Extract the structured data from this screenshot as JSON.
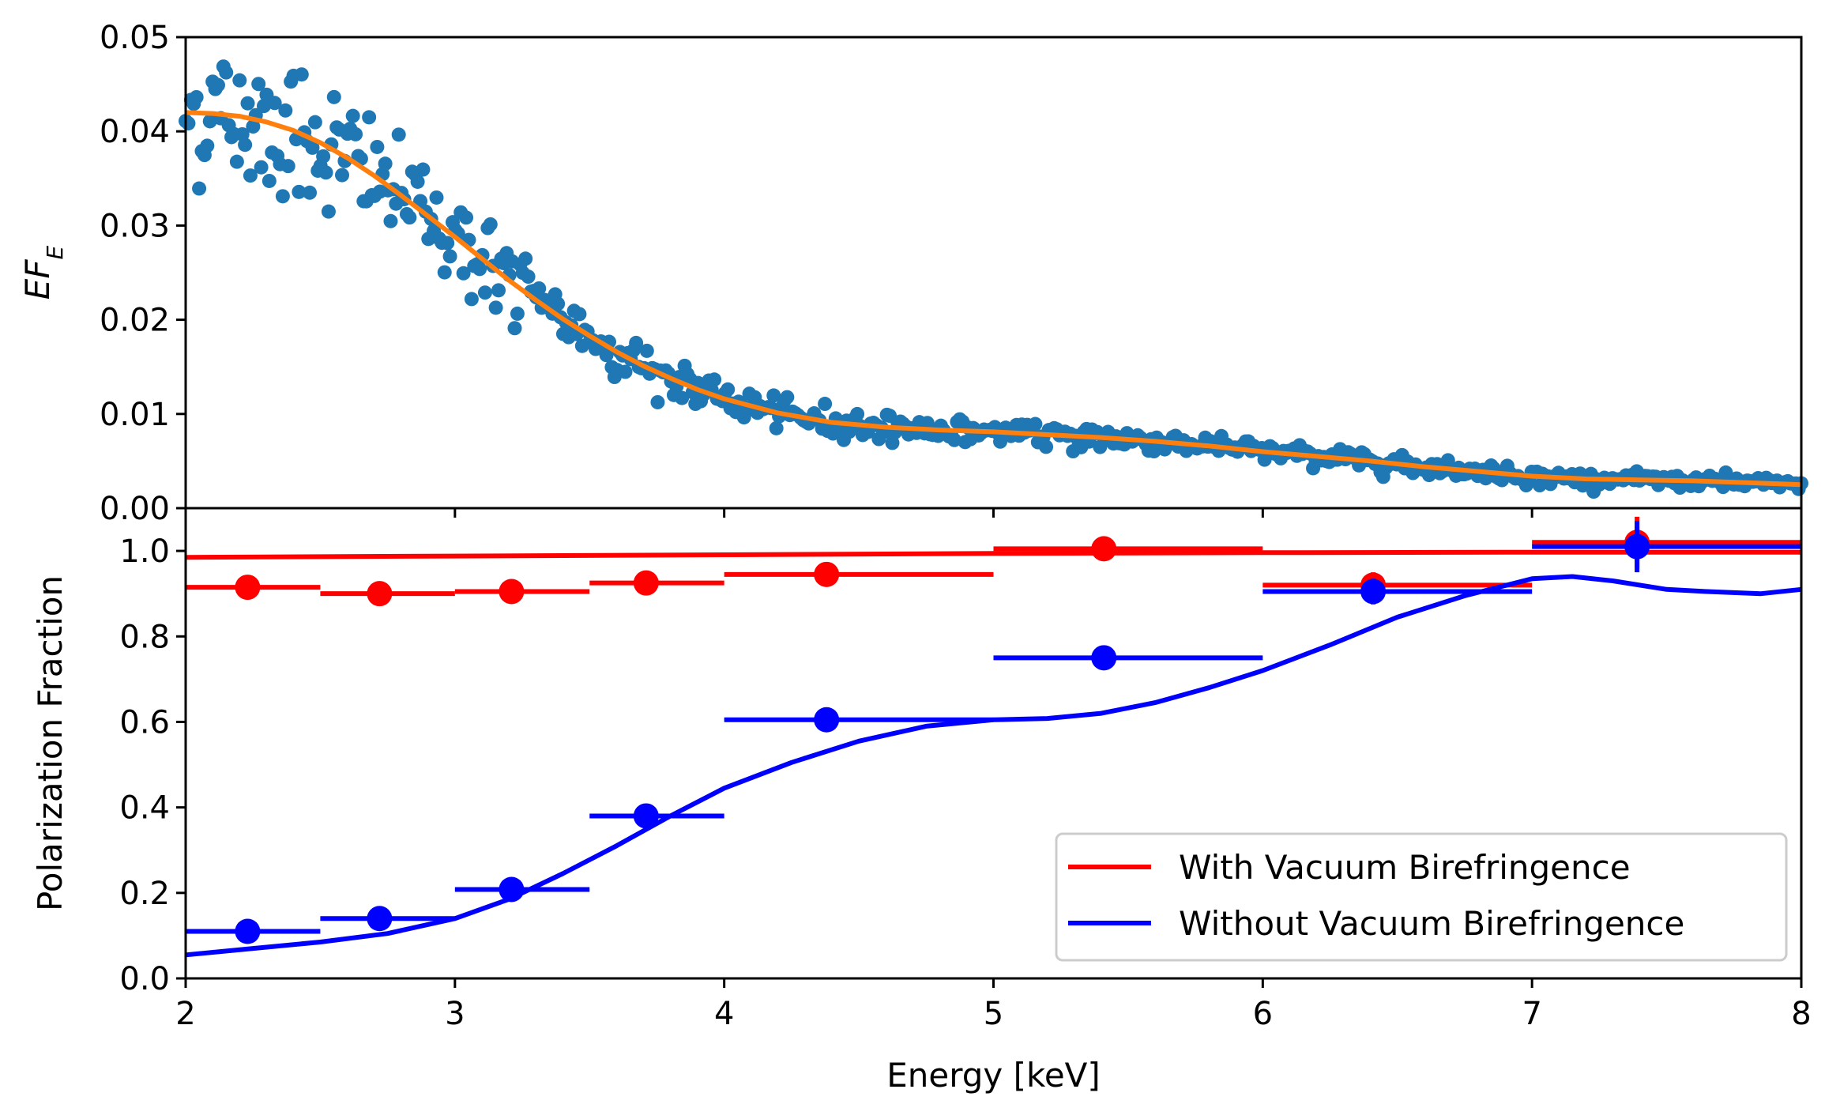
{
  "chart_data": [
    {
      "type": "scatter",
      "panel": "top",
      "xlabel": "",
      "ylabel_main": "EF",
      "ylabel_sub": "E",
      "xlim": [
        2,
        8
      ],
      "ylim": [
        0,
        0.05
      ],
      "yticks": [
        0.0,
        0.01,
        0.02,
        0.03,
        0.04,
        0.05
      ],
      "ytick_labels": [
        "0.00",
        "0.01",
        "0.02",
        "0.03",
        "0.04",
        "0.05"
      ],
      "grid": false,
      "colors": {
        "scatter": "#1f77b4",
        "model": "#ff7f0e"
      },
      "series": [
        {
          "kind": "scatter-points",
          "description_x_range": [
            2,
            8
          ],
          "n_points": 600,
          "envelope_note": "observed spectrum points scatter around the model curve",
          "noise_fraction": 0.07
        },
        {
          "kind": "model-line",
          "x": [
            2.0,
            2.1,
            2.2,
            2.3,
            2.4,
            2.5,
            2.6,
            2.7,
            2.8,
            2.9,
            3.0,
            3.1,
            3.2,
            3.3,
            3.4,
            3.5,
            3.6,
            3.7,
            3.8,
            3.9,
            4.0,
            4.2,
            4.4,
            4.6,
            4.8,
            5.0,
            5.2,
            5.4,
            5.6,
            5.8,
            6.0,
            6.2,
            6.4,
            6.6,
            6.8,
            7.0,
            7.2,
            7.4,
            7.6,
            7.8,
            8.0
          ],
          "y": [
            0.042,
            0.0419,
            0.0416,
            0.041,
            0.0401,
            0.0388,
            0.0372,
            0.0353,
            0.0332,
            0.031,
            0.0288,
            0.0265,
            0.0242,
            0.0221,
            0.0201,
            0.0183,
            0.0166,
            0.0151,
            0.0138,
            0.0126,
            0.0116,
            0.0101,
            0.0091,
            0.0086,
            0.0083,
            0.0081,
            0.0078,
            0.0075,
            0.0071,
            0.0066,
            0.006,
            0.0055,
            0.005,
            0.0044,
            0.0039,
            0.0034,
            0.0031,
            0.003,
            0.0029,
            0.0027,
            0.0025
          ]
        }
      ]
    },
    {
      "type": "line",
      "panel": "bottom",
      "xlabel": "Energy [keV]",
      "ylabel": "Polarization Fraction",
      "xlim": [
        2,
        8
      ],
      "ylim": [
        0,
        1.1
      ],
      "xticks": [
        2,
        3,
        4,
        5,
        6,
        7,
        8
      ],
      "xtick_labels": [
        "2",
        "3",
        "4",
        "5",
        "6",
        "7",
        "8"
      ],
      "yticks": [
        0.0,
        0.2,
        0.4,
        0.6,
        0.8,
        1.0
      ],
      "ytick_labels": [
        "0.0",
        "0.2",
        "0.4",
        "0.6",
        "0.8",
        "1.0"
      ],
      "grid": false,
      "legend_position": "lower-right",
      "series": [
        {
          "name": "With Vacuum Birefringence",
          "color": "#ff0000",
          "line": {
            "x": [
              2.0,
              3.0,
              4.0,
              5.0,
              6.0,
              7.0,
              8.0
            ],
            "y": [
              0.985,
              0.988,
              0.991,
              0.994,
              0.996,
              0.997,
              0.997
            ]
          },
          "points": [
            {
              "x": 2.23,
              "y": 0.915,
              "xlo": 2.0,
              "xhi": 2.5,
              "yerr": 0.01
            },
            {
              "x": 2.72,
              "y": 0.9,
              "xlo": 2.5,
              "xhi": 3.0,
              "yerr": 0.01
            },
            {
              "x": 3.21,
              "y": 0.905,
              "xlo": 3.0,
              "xhi": 3.5,
              "yerr": 0.01
            },
            {
              "x": 3.71,
              "y": 0.925,
              "xlo": 3.5,
              "xhi": 4.0,
              "yerr": 0.01
            },
            {
              "x": 4.38,
              "y": 0.945,
              "xlo": 4.0,
              "xhi": 5.0,
              "yerr": 0.01
            },
            {
              "x": 5.41,
              "y": 1.005,
              "xlo": 5.0,
              "xhi": 6.0,
              "yerr": 0.01
            },
            {
              "x": 6.41,
              "y": 0.92,
              "xlo": 6.0,
              "xhi": 7.0,
              "yerr": 0.03
            },
            {
              "x": 7.39,
              "y": 1.02,
              "xlo": 7.0,
              "xhi": 8.0,
              "yerr": 0.06
            }
          ]
        },
        {
          "name": "Without Vacuum Birefringence",
          "color": "#0000ff",
          "line": {
            "x": [
              2.0,
              2.25,
              2.5,
              2.75,
              3.0,
              3.2,
              3.4,
              3.6,
              3.8,
              4.0,
              4.25,
              4.5,
              4.75,
              5.0,
              5.2,
              5.4,
              5.6,
              5.8,
              6.0,
              6.25,
              6.5,
              6.75,
              7.0,
              7.15,
              7.3,
              7.5,
              7.65,
              7.85,
              8.0
            ],
            "y": [
              0.055,
              0.07,
              0.085,
              0.105,
              0.14,
              0.185,
              0.245,
              0.31,
              0.38,
              0.445,
              0.505,
              0.555,
              0.59,
              0.605,
              0.608,
              0.62,
              0.645,
              0.68,
              0.72,
              0.78,
              0.845,
              0.895,
              0.935,
              0.94,
              0.93,
              0.91,
              0.905,
              0.9,
              0.91
            ]
          },
          "points": [
            {
              "x": 2.23,
              "y": 0.11,
              "xlo": 2.0,
              "xhi": 2.5,
              "yerr": 0.01
            },
            {
              "x": 2.72,
              "y": 0.14,
              "xlo": 2.5,
              "xhi": 3.0,
              "yerr": 0.01
            },
            {
              "x": 3.21,
              "y": 0.208,
              "xlo": 3.0,
              "xhi": 3.5,
              "yerr": 0.01
            },
            {
              "x": 3.71,
              "y": 0.38,
              "xlo": 3.5,
              "xhi": 4.0,
              "yerr": 0.01
            },
            {
              "x": 4.38,
              "y": 0.605,
              "xlo": 4.0,
              "xhi": 5.0,
              "yerr": 0.01
            },
            {
              "x": 5.41,
              "y": 0.75,
              "xlo": 5.0,
              "xhi": 6.0,
              "yerr": 0.01
            },
            {
              "x": 6.41,
              "y": 0.905,
              "xlo": 6.0,
              "xhi": 7.0,
              "yerr": 0.03
            },
            {
              "x": 7.39,
              "y": 1.01,
              "xlo": 7.0,
              "xhi": 8.0,
              "yerr": 0.06
            }
          ]
        }
      ]
    }
  ]
}
